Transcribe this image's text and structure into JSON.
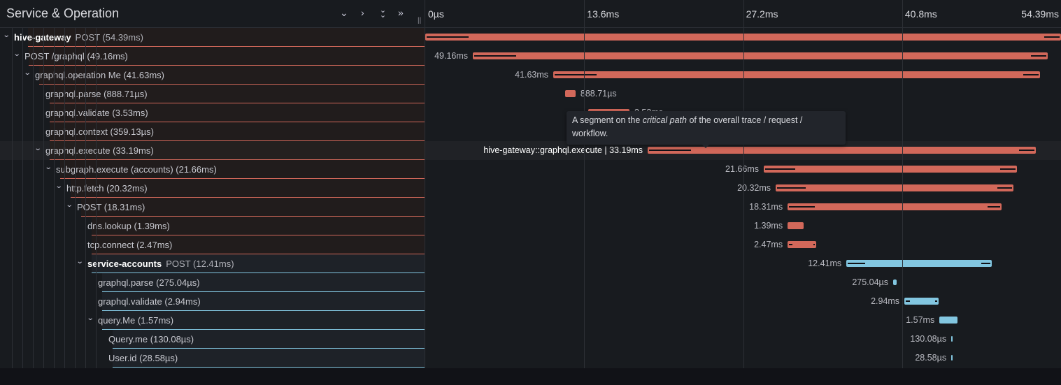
{
  "header": {
    "title": "Service & Operation",
    "buttons": [
      {
        "name": "collapse-one-button",
        "glyph": "⌄"
      },
      {
        "name": "expand-one-button",
        "glyph": "›"
      },
      {
        "name": "collapse-all-button",
        "glyph": "⌄⌄"
      },
      {
        "name": "expand-all-button",
        "glyph": "»"
      }
    ],
    "resize_handle": "||"
  },
  "timeline": {
    "max_ms": 54.39,
    "ticks": [
      {
        "label": "0µs",
        "ms": 0
      },
      {
        "label": "13.6ms",
        "ms": 13.6
      },
      {
        "label": "27.2ms",
        "ms": 27.2
      },
      {
        "label": "40.8ms",
        "ms": 40.8
      },
      {
        "label": "54.39ms",
        "ms": 54.39
      }
    ]
  },
  "colors": {
    "hive-gateway": "#d2685a",
    "service-accounts": "#82c6e0",
    "selected_row": "#202226"
  },
  "spans": [
    {
      "depth": 0,
      "service": "hive-gateway",
      "op": "POST (54.39ms)",
      "name": "",
      "start": 0,
      "dur": 54.39,
      "dur_label": "",
      "svc": "hive-gateway",
      "expandable": true
    },
    {
      "depth": 1,
      "service": "",
      "op": "",
      "name": "POST /graphql (49.16ms)",
      "start": 4.07,
      "dur": 49.16,
      "dur_label": "49.16ms",
      "svc": "hive-gateway",
      "expandable": true
    },
    {
      "depth": 2,
      "service": "",
      "op": "",
      "name": "graphql.operation Me (41.63ms)",
      "start": 10.95,
      "dur": 41.63,
      "dur_label": "41.63ms",
      "svc": "hive-gateway",
      "expandable": true
    },
    {
      "depth": 3,
      "service": "",
      "op": "",
      "name": "graphql.parse (888.71µs)",
      "start": 11.97,
      "dur": 0.889,
      "dur_label": "888.71µs",
      "svc": "hive-gateway",
      "expandable": false
    },
    {
      "depth": 3,
      "service": "",
      "op": "",
      "name": "graphql.validate (3.53ms)",
      "start": 13.94,
      "dur": 3.53,
      "dur_label": "3.53ms",
      "svc": "hive-gateway",
      "expandable": false
    },
    {
      "depth": 3,
      "service": "",
      "op": "",
      "name": "graphql.context (359.13µs)",
      "start": 17.6,
      "dur": 0.359,
      "dur_label": "359.13µs",
      "svc": "hive-gateway",
      "expandable": false
    },
    {
      "depth": 3,
      "service": "",
      "op": "",
      "name": "graphql.execute (33.19ms)",
      "start": 19.03,
      "dur": 33.19,
      "dur_label": "hive-gateway::graphql.execute | 33.19ms",
      "svc": "hive-gateway",
      "expandable": true,
      "selected": true
    },
    {
      "depth": 4,
      "service": "",
      "op": "",
      "name": "subgraph.execute (accounts) (21.66ms)",
      "start": 28.96,
      "dur": 21.66,
      "dur_label": "21.66ms",
      "svc": "hive-gateway",
      "expandable": true
    },
    {
      "depth": 5,
      "service": "",
      "op": "",
      "name": "http.fetch (20.32ms)",
      "start": 29.98,
      "dur": 20.32,
      "dur_label": "20.32ms",
      "svc": "hive-gateway",
      "expandable": true
    },
    {
      "depth": 6,
      "service": "",
      "op": "",
      "name": "POST (18.31ms)",
      "start": 31.0,
      "dur": 18.31,
      "dur_label": "18.31ms",
      "svc": "hive-gateway",
      "expandable": true
    },
    {
      "depth": 7,
      "service": "",
      "op": "",
      "name": "dns.lookup (1.39ms)",
      "start": 31.0,
      "dur": 1.39,
      "dur_label": "1.39ms",
      "svc": "hive-gateway",
      "expandable": false
    },
    {
      "depth": 7,
      "service": "",
      "op": "",
      "name": "tcp.connect (2.47ms)",
      "start": 31.0,
      "dur": 2.47,
      "dur_label": "2.47ms",
      "svc": "hive-gateway",
      "expandable": false
    },
    {
      "depth": 7,
      "service": "service-accounts",
      "op": "POST (12.41ms)",
      "name": "",
      "start": 36.03,
      "dur": 12.41,
      "dur_label": "12.41ms",
      "svc": "service-accounts",
      "expandable": true
    },
    {
      "depth": 8,
      "service": "",
      "op": "",
      "name": "graphql.parse (275.04µs)",
      "start": 40.03,
      "dur": 0.275,
      "dur_label": "275.04µs",
      "svc": "service-accounts",
      "expandable": false
    },
    {
      "depth": 8,
      "service": "",
      "op": "",
      "name": "graphql.validate (2.94ms)",
      "start": 40.99,
      "dur": 2.94,
      "dur_label": "2.94ms",
      "svc": "service-accounts",
      "expandable": false
    },
    {
      "depth": 8,
      "service": "",
      "op": "",
      "name": "query.Me (1.57ms)",
      "start": 43.99,
      "dur": 1.57,
      "dur_label": "1.57ms",
      "svc": "service-accounts",
      "expandable": true
    },
    {
      "depth": 9,
      "service": "",
      "op": "",
      "name": "Query.me (130.08µs)",
      "start": 45.0,
      "dur": 0.13,
      "dur_label": "130.08µs",
      "svc": "service-accounts",
      "expandable": false
    },
    {
      "depth": 9,
      "service": "",
      "op": "",
      "name": "User.id (28.58µs)",
      "start": 45.0,
      "dur": 0.029,
      "dur_label": "28.58µs",
      "svc": "service-accounts",
      "expandable": false
    }
  ],
  "tooltip": {
    "before": "A segment on the ",
    "em": "critical path",
    "after": " of the overall trace / request / workflow."
  }
}
